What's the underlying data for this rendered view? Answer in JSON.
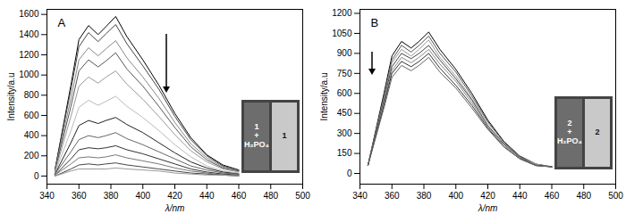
{
  "chart_data": [
    {
      "type": "line",
      "title": "A",
      "xlabel": "λ/nm",
      "ylabel": "Intensity/a.u",
      "xlim": [
        340,
        500
      ],
      "xticks": [
        340,
        360,
        380,
        400,
        420,
        440,
        460,
        480,
        500
      ],
      "ylim": [
        -80,
        1650
      ],
      "yticks": [
        0,
        200,
        400,
        600,
        800,
        1000,
        1200,
        1400,
        1600
      ],
      "annotations": [
        "1 + H₂PO₄",
        "1"
      ],
      "x": [
        345,
        355,
        360,
        366,
        372,
        377,
        383,
        390,
        400,
        410,
        420,
        430,
        440,
        450,
        460
      ],
      "series": [
        {
          "color": "#000000",
          "values": [
            60,
            900,
            1350,
            1490,
            1400,
            1480,
            1580,
            1380,
            1150,
            900,
            620,
            380,
            210,
            110,
            60
          ]
        },
        {
          "color": "#444444",
          "values": [
            60,
            860,
            1280,
            1420,
            1330,
            1410,
            1500,
            1310,
            1090,
            860,
            590,
            360,
            200,
            100,
            60
          ]
        },
        {
          "color": "#888888",
          "values": [
            50,
            770,
            1150,
            1270,
            1190,
            1260,
            1340,
            1170,
            980,
            770,
            530,
            320,
            180,
            90,
            50
          ]
        },
        {
          "color": "#555555",
          "values": [
            50,
            690,
            1040,
            1150,
            1080,
            1140,
            1220,
            1060,
            890,
            690,
            480,
            290,
            160,
            80,
            50
          ]
        },
        {
          "color": "#999999",
          "values": [
            40,
            590,
            890,
            980,
            920,
            980,
            1040,
            910,
            760,
            590,
            410,
            250,
            140,
            70,
            40
          ]
        },
        {
          "color": "#bbbbbb",
          "values": [
            30,
            450,
            680,
            750,
            700,
            740,
            790,
            690,
            580,
            450,
            310,
            190,
            100,
            50,
            30
          ]
        },
        {
          "color": "#222222",
          "values": [
            20,
            330,
            500,
            550,
            520,
            550,
            580,
            510,
            430,
            330,
            230,
            140,
            80,
            40,
            20
          ]
        },
        {
          "color": "#666666",
          "values": [
            20,
            240,
            360,
            400,
            380,
            400,
            430,
            370,
            310,
            240,
            170,
            100,
            60,
            30,
            20
          ]
        },
        {
          "color": "#333333",
          "values": [
            10,
            170,
            260,
            280,
            270,
            280,
            300,
            260,
            220,
            170,
            120,
            70,
            40,
            20,
            10
          ]
        },
        {
          "color": "#777777",
          "values": [
            10,
            120,
            180,
            190,
            180,
            190,
            210,
            180,
            150,
            120,
            80,
            50,
            30,
            10,
            10
          ]
        },
        {
          "color": "#444444",
          "values": [
            0,
            70,
            110,
            120,
            110,
            120,
            130,
            110,
            90,
            70,
            50,
            30,
            20,
            10,
            0
          ]
        },
        {
          "color": "#999999",
          "values": [
            0,
            50,
            70,
            70,
            70,
            70,
            80,
            70,
            60,
            50,
            30,
            20,
            10,
            10,
            0
          ]
        }
      ]
    },
    {
      "type": "line",
      "title": "B",
      "xlabel": "λ/nm",
      "ylabel": "Intensity/a.u",
      "xlim": [
        340,
        500
      ],
      "xticks": [
        340,
        360,
        380,
        400,
        420,
        440,
        460,
        480,
        500
      ],
      "ylim": [
        -80,
        1230
      ],
      "yticks": [
        0,
        150,
        300,
        450,
        600,
        750,
        900,
        1050,
        1200
      ],
      "annotations": [
        "2 + H₂PO₄",
        "2"
      ],
      "x": [
        345,
        355,
        360,
        366,
        372,
        377,
        383,
        390,
        400,
        410,
        420,
        430,
        440,
        450,
        460
      ],
      "series": [
        {
          "color": "#000000",
          "values": [
            60,
            600,
            880,
            990,
            940,
            990,
            1060,
            930,
            780,
            600,
            400,
            240,
            130,
            70,
            50
          ]
        },
        {
          "color": "#555555",
          "values": [
            60,
            580,
            850,
            960,
            910,
            960,
            1030,
            900,
            760,
            580,
            390,
            230,
            130,
            70,
            50
          ]
        },
        {
          "color": "#999999",
          "values": [
            60,
            560,
            830,
            930,
            880,
            930,
            1000,
            870,
            730,
            560,
            380,
            230,
            120,
            70,
            50
          ]
        },
        {
          "color": "#444444",
          "values": [
            60,
            550,
            800,
            900,
            860,
            900,
            960,
            850,
            710,
            550,
            360,
            220,
            120,
            60,
            50
          ]
        },
        {
          "color": "#888888",
          "values": [
            60,
            530,
            770,
            870,
            830,
            870,
            930,
            820,
            690,
            530,
            350,
            210,
            110,
            60,
            50
          ]
        },
        {
          "color": "#333333",
          "values": [
            60,
            510,
            750,
            840,
            800,
            840,
            900,
            790,
            660,
            510,
            340,
            200,
            110,
            60,
            50
          ]
        },
        {
          "color": "#666666",
          "values": [
            60,
            490,
            720,
            810,
            770,
            810,
            870,
            760,
            640,
            490,
            330,
            200,
            110,
            60,
            50
          ]
        }
      ]
    }
  ]
}
